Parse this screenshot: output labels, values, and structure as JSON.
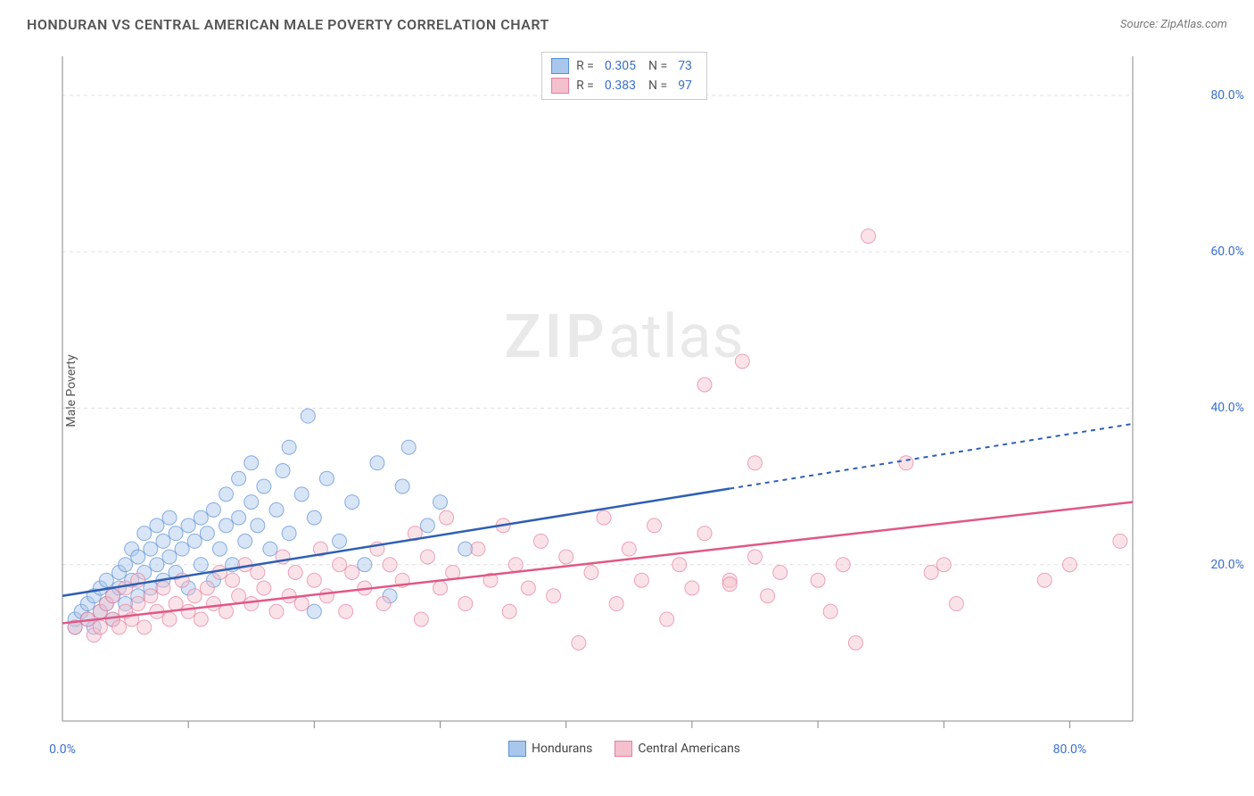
{
  "title": "HONDURAN VS CENTRAL AMERICAN MALE POVERTY CORRELATION CHART",
  "source": "Source: ZipAtlas.com",
  "y_axis_label": "Male Poverty",
  "watermark": {
    "bold": "ZIP",
    "light": "atlas"
  },
  "chart": {
    "type": "scatter",
    "xlim": [
      0,
      85
    ],
    "ylim": [
      0,
      85
    ],
    "x_ticks": {
      "major_labels": [
        {
          "v": 0,
          "t": "0.0%"
        },
        {
          "v": 80,
          "t": "80.0%"
        }
      ],
      "minor_step": 10
    },
    "y_ticks": {
      "labels": [
        {
          "v": 20,
          "t": "20.0%"
        },
        {
          "v": 40,
          "t": "40.0%"
        },
        {
          "v": 60,
          "t": "60.0%"
        },
        {
          "v": 80,
          "t": "80.0%"
        }
      ]
    },
    "grid_color": "#e0e0e0",
    "axis_color": "#888",
    "background_color": "#ffffff",
    "marker_radius": 8,
    "marker_opacity": 0.45,
    "series": [
      {
        "key": "hondurans",
        "label": "Hondurans",
        "fill_color": "#a9c6ec",
        "stroke_color": "#5b8fd6",
        "line_color": "#2e5fb3",
        "R": 0.305,
        "N": 73,
        "trend": {
          "y_at_x0": 16,
          "y_at_x_end": 38,
          "solid_until_x": 53,
          "x_end": 85
        },
        "points": [
          [
            1,
            12
          ],
          [
            1,
            13
          ],
          [
            1.5,
            14
          ],
          [
            2,
            13
          ],
          [
            2,
            15
          ],
          [
            2.5,
            12
          ],
          [
            2.5,
            16
          ],
          [
            3,
            14
          ],
          [
            3,
            17
          ],
          [
            3.5,
            15
          ],
          [
            3.5,
            18
          ],
          [
            4,
            13
          ],
          [
            4,
            16
          ],
          [
            4.5,
            17
          ],
          [
            4.5,
            19
          ],
          [
            5,
            15
          ],
          [
            5,
            20
          ],
          [
            5.5,
            18
          ],
          [
            5.5,
            22
          ],
          [
            6,
            16
          ],
          [
            6,
            21
          ],
          [
            6.5,
            19
          ],
          [
            6.5,
            24
          ],
          [
            7,
            17
          ],
          [
            7,
            22
          ],
          [
            7.5,
            20
          ],
          [
            7.5,
            25
          ],
          [
            8,
            18
          ],
          [
            8,
            23
          ],
          [
            8.5,
            21
          ],
          [
            8.5,
            26
          ],
          [
            9,
            19
          ],
          [
            9,
            24
          ],
          [
            9.5,
            22
          ],
          [
            10,
            25
          ],
          [
            10,
            17
          ],
          [
            10.5,
            23
          ],
          [
            11,
            26
          ],
          [
            11,
            20
          ],
          [
            11.5,
            24
          ],
          [
            12,
            27
          ],
          [
            12,
            18
          ],
          [
            12.5,
            22
          ],
          [
            13,
            25
          ],
          [
            13,
            29
          ],
          [
            13.5,
            20
          ],
          [
            14,
            26
          ],
          [
            14,
            31
          ],
          [
            14.5,
            23
          ],
          [
            15,
            28
          ],
          [
            15,
            33
          ],
          [
            15.5,
            25
          ],
          [
            16,
            30
          ],
          [
            16.5,
            22
          ],
          [
            17,
            27
          ],
          [
            17.5,
            32
          ],
          [
            18,
            24
          ],
          [
            18,
            35
          ],
          [
            19,
            29
          ],
          [
            19.5,
            39
          ],
          [
            20,
            14
          ],
          [
            20,
            26
          ],
          [
            21,
            31
          ],
          [
            22,
            23
          ],
          [
            23,
            28
          ],
          [
            24,
            20
          ],
          [
            25,
            33
          ],
          [
            26,
            16
          ],
          [
            27,
            30
          ],
          [
            27.5,
            35
          ],
          [
            29,
            25
          ],
          [
            30,
            28
          ],
          [
            32,
            22
          ]
        ]
      },
      {
        "key": "central_americans",
        "label": "Central Americans",
        "fill_color": "#f3c0cd",
        "stroke_color": "#e67f9f",
        "line_color": "#e05885",
        "R": 0.383,
        "N": 97,
        "trend": {
          "y_at_x0": 12.5,
          "y_at_x_end": 28,
          "solid_until_x": 85,
          "x_end": 85
        },
        "points": [
          [
            1,
            12
          ],
          [
            2,
            13
          ],
          [
            2.5,
            11
          ],
          [
            3,
            14
          ],
          [
            3,
            12
          ],
          [
            3.5,
            15
          ],
          [
            4,
            13
          ],
          [
            4,
            16
          ],
          [
            4.5,
            12
          ],
          [
            5,
            14
          ],
          [
            5,
            17
          ],
          [
            5.5,
            13
          ],
          [
            6,
            15
          ],
          [
            6,
            18
          ],
          [
            6.5,
            12
          ],
          [
            7,
            16
          ],
          [
            7.5,
            14
          ],
          [
            8,
            17
          ],
          [
            8.5,
            13
          ],
          [
            9,
            15
          ],
          [
            9.5,
            18
          ],
          [
            10,
            14
          ],
          [
            10.5,
            16
          ],
          [
            11,
            13
          ],
          [
            11.5,
            17
          ],
          [
            12,
            15
          ],
          [
            12.5,
            19
          ],
          [
            13,
            14
          ],
          [
            13.5,
            18
          ],
          [
            14,
            16
          ],
          [
            14.5,
            20
          ],
          [
            15,
            15
          ],
          [
            15.5,
            19
          ],
          [
            16,
            17
          ],
          [
            17,
            14
          ],
          [
            17.5,
            21
          ],
          [
            18,
            16
          ],
          [
            18.5,
            19
          ],
          [
            19,
            15
          ],
          [
            20,
            18
          ],
          [
            20.5,
            22
          ],
          [
            21,
            16
          ],
          [
            22,
            20
          ],
          [
            22.5,
            14
          ],
          [
            23,
            19
          ],
          [
            24,
            17
          ],
          [
            25,
            22
          ],
          [
            25.5,
            15
          ],
          [
            26,
            20
          ],
          [
            27,
            18
          ],
          [
            28,
            24
          ],
          [
            28.5,
            13
          ],
          [
            29,
            21
          ],
          [
            30,
            17
          ],
          [
            30.5,
            26
          ],
          [
            31,
            19
          ],
          [
            32,
            15
          ],
          [
            33,
            22
          ],
          [
            34,
            18
          ],
          [
            35,
            25
          ],
          [
            35.5,
            14
          ],
          [
            36,
            20
          ],
          [
            37,
            17
          ],
          [
            38,
            23
          ],
          [
            39,
            16
          ],
          [
            40,
            21
          ],
          [
            41,
            10
          ],
          [
            42,
            19
          ],
          [
            43,
            26
          ],
          [
            44,
            15
          ],
          [
            45,
            22
          ],
          [
            46,
            18
          ],
          [
            47,
            25
          ],
          [
            48,
            13
          ],
          [
            49,
            20
          ],
          [
            50,
            17
          ],
          [
            51,
            24
          ],
          [
            51,
            43
          ],
          [
            53,
            18
          ],
          [
            54,
            46
          ],
          [
            55,
            21
          ],
          [
            55,
            33
          ],
          [
            56,
            16
          ],
          [
            57,
            19
          ],
          [
            60,
            18
          ],
          [
            61,
            14
          ],
          [
            62,
            20
          ],
          [
            63,
            10
          ],
          [
            64,
            62
          ],
          [
            67,
            33
          ],
          [
            69,
            19
          ],
          [
            70,
            20
          ],
          [
            71,
            15
          ],
          [
            78,
            18
          ],
          [
            80,
            20
          ],
          [
            84,
            23
          ],
          [
            53,
            17.5
          ]
        ]
      }
    ]
  },
  "legend_bottom": [
    {
      "label": "Hondurans",
      "fill": "#a9c6ec",
      "stroke": "#5b8fd6"
    },
    {
      "label": "Central Americans",
      "fill": "#f3c0cd",
      "stroke": "#e67f9f"
    }
  ]
}
